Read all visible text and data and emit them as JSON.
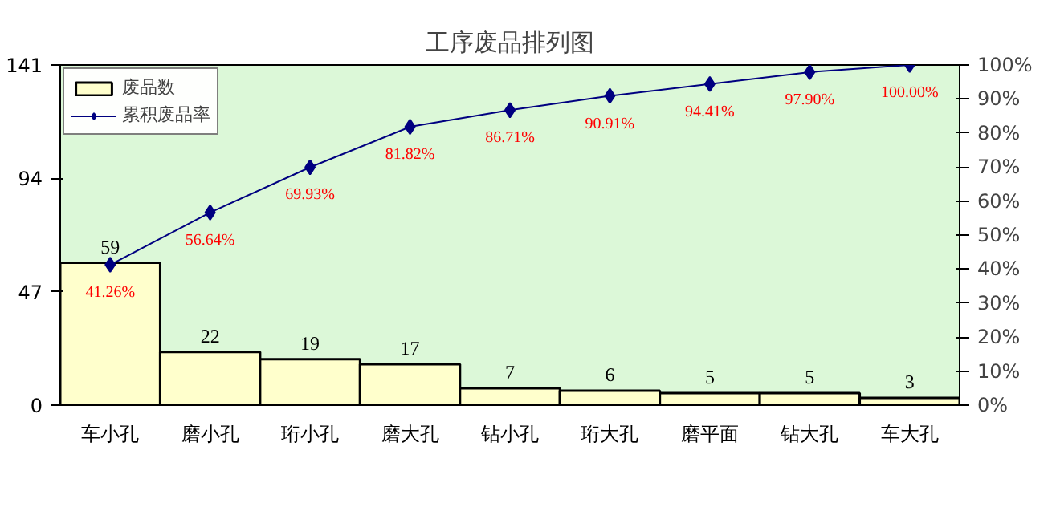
{
  "chart_data": {
    "type": "bar",
    "title": "工序废品排列图",
    "categories": [
      "车小孔",
      "磨小孔",
      "珩小孔",
      "磨大孔",
      "钻小孔",
      "珩大孔",
      "磨平面",
      "钻大孔",
      "车大孔"
    ],
    "series": [
      {
        "name": "废品数",
        "color": "#ffffcc",
        "values": [
          59,
          22,
          19,
          17,
          7,
          6,
          5,
          5,
          3
        ],
        "value_labels": [
          "59",
          "22",
          "19",
          "17",
          "7",
          "6",
          "5",
          "5",
          "3"
        ]
      },
      {
        "name": "累积废品率",
        "type": "line",
        "axis": "y2",
        "color": "#000080",
        "marker": "diamond",
        "values": [
          41.26,
          56.64,
          69.93,
          81.82,
          86.71,
          90.91,
          94.41,
          97.9,
          100.0
        ],
        "value_labels": [
          "41.26%",
          "56.64%",
          "69.93%",
          "81.82%",
          "86.71%",
          "90.91%",
          "94.41%",
          "97.90%",
          "100.00%"
        ]
      }
    ],
    "ylim": [
      0,
      141
    ],
    "yticks": [
      0,
      47,
      94,
      141
    ],
    "y2lim": [
      0,
      100
    ],
    "y2ticks": [
      {
        "value": 0,
        "label": "0%"
      },
      {
        "value": 10,
        "label": "10%"
      },
      {
        "value": 20,
        "label": "20%"
      },
      {
        "value": 30,
        "label": "30%"
      },
      {
        "value": 40,
        "label": "40%"
      },
      {
        "value": 50,
        "label": "50%"
      },
      {
        "value": 60,
        "label": "60%"
      },
      {
        "value": 70,
        "label": "70%"
      },
      {
        "value": 80,
        "label": "80%"
      },
      {
        "value": 90,
        "label": "90%"
      },
      {
        "value": 100,
        "label": "100%"
      }
    ],
    "grid": false,
    "legend": "top left"
  }
}
